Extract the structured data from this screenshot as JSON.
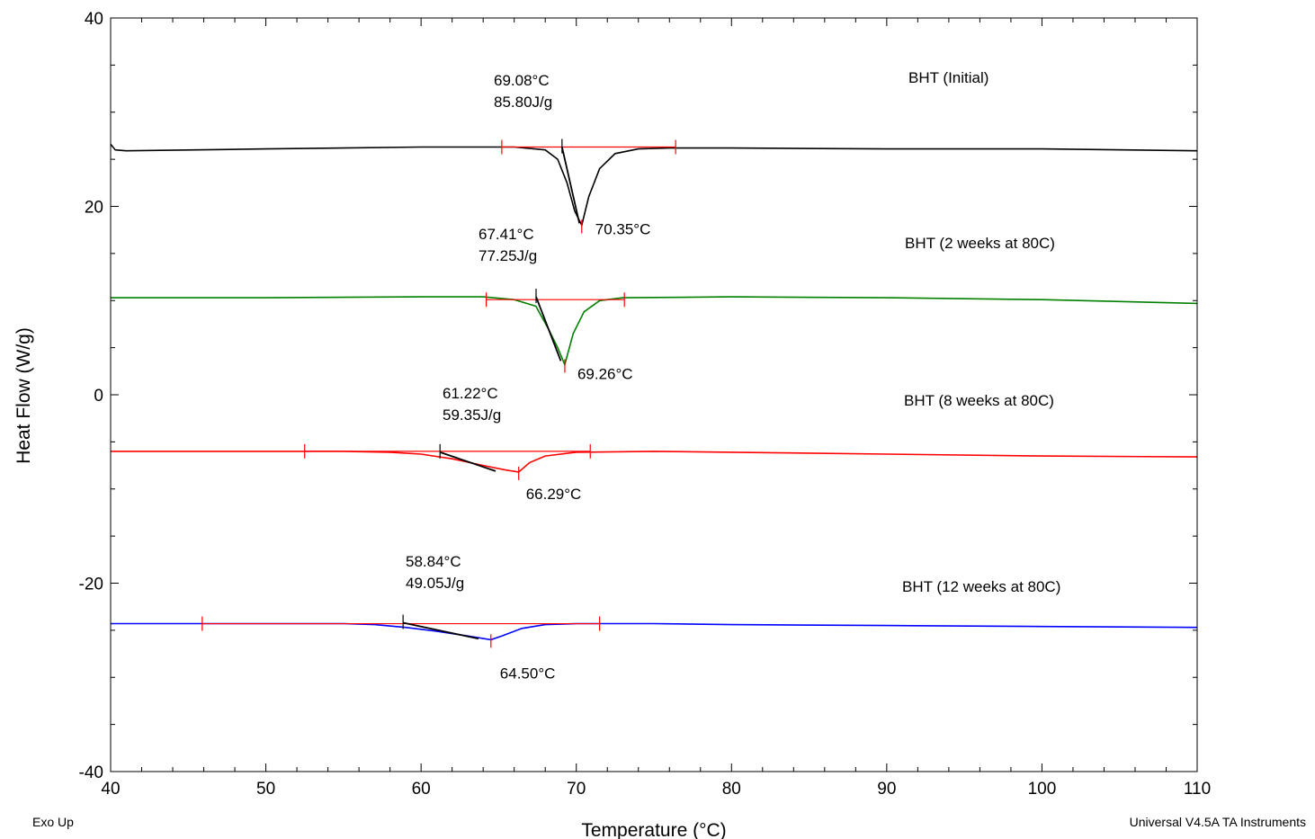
{
  "footer": {
    "left_note": "Exo Up",
    "right_note": "Universal V4.5A TA Instruments"
  },
  "chart_data": {
    "type": "line",
    "title": "",
    "xlabel": "Temperature (°C)",
    "ylabel": "Heat Flow (W/g)",
    "xlim": [
      40,
      110
    ],
    "ylim": [
      -40,
      40
    ],
    "xticks": [
      40,
      50,
      60,
      70,
      80,
      90,
      100,
      110
    ],
    "yticks": [
      -40,
      -20,
      0,
      20,
      40
    ],
    "grid": false,
    "series": [
      {
        "name": "BHT (Initial)",
        "color": "#000000",
        "points": [
          [
            40,
            26.6
          ],
          [
            40.3,
            26.0
          ],
          [
            41,
            25.9
          ],
          [
            50,
            26.1
          ],
          [
            60,
            26.3
          ],
          [
            66,
            26.3
          ],
          [
            68,
            26.0
          ],
          [
            68.8,
            25.0
          ],
          [
            69.4,
            22.5
          ],
          [
            69.9,
            19.5
          ],
          [
            70.35,
            18.0
          ],
          [
            70.8,
            21.0
          ],
          [
            71.5,
            24.0
          ],
          [
            72.5,
            25.6
          ],
          [
            74,
            26.1
          ],
          [
            76,
            26.2
          ],
          [
            80,
            26.2
          ],
          [
            90,
            26.1
          ],
          [
            100,
            26.1
          ],
          [
            110,
            25.9
          ]
        ],
        "onset_c": "69.08°C",
        "enthalpy": "85.80J/g",
        "peak_c": "70.35°C",
        "baseline": [
          65.2,
          76.4
        ],
        "onset_line": [
          [
            69.08,
            26.3
          ],
          [
            70.2,
            18.2
          ]
        ]
      },
      {
        "name": "BHT (2 weeks at 80C)",
        "color": "#008000",
        "points": [
          [
            40,
            10.3
          ],
          [
            50,
            10.3
          ],
          [
            60,
            10.4
          ],
          [
            64,
            10.4
          ],
          [
            66,
            10.1
          ],
          [
            67.4,
            9.4
          ],
          [
            68.2,
            7.0
          ],
          [
            68.8,
            5.0
          ],
          [
            69.26,
            3.2
          ],
          [
            69.8,
            6.5
          ],
          [
            70.5,
            8.8
          ],
          [
            71.5,
            10.0
          ],
          [
            73,
            10.3
          ],
          [
            80,
            10.4
          ],
          [
            90,
            10.3
          ],
          [
            100,
            10.1
          ],
          [
            110,
            9.7
          ]
        ],
        "onset_c": "67.41°C",
        "enthalpy": "77.25J/g",
        "peak_c": "69.26°C",
        "baseline": [
          64.2,
          73.1
        ],
        "onset_line": [
          [
            67.41,
            10.4
          ],
          [
            69.0,
            3.6
          ]
        ]
      },
      {
        "name": "BHT (8 weeks at 80C)",
        "color": "#ff0000",
        "points": [
          [
            40,
            -6.0
          ],
          [
            50,
            -6.0
          ],
          [
            55,
            -6.0
          ],
          [
            58,
            -6.1
          ],
          [
            60,
            -6.3
          ],
          [
            62,
            -6.8
          ],
          [
            64,
            -7.5
          ],
          [
            65.5,
            -8.0
          ],
          [
            66.29,
            -8.2
          ],
          [
            67,
            -7.2
          ],
          [
            68,
            -6.5
          ],
          [
            70,
            -6.1
          ],
          [
            75,
            -6.0
          ],
          [
            80,
            -6.1
          ],
          [
            90,
            -6.3
          ],
          [
            100,
            -6.5
          ],
          [
            110,
            -6.6
          ]
        ],
        "onset_c": "61.22°C",
        "enthalpy": "59.35J/g",
        "peak_c": "66.29°C",
        "baseline": [
          52.5,
          70.9
        ],
        "onset_line": [
          [
            61.22,
            -6.1
          ],
          [
            64.8,
            -8.1
          ]
        ]
      },
      {
        "name": "BHT (12 weeks at 80C)",
        "color": "#0000ff",
        "points": [
          [
            40,
            -24.3
          ],
          [
            50,
            -24.3
          ],
          [
            55,
            -24.3
          ],
          [
            57,
            -24.4
          ],
          [
            59,
            -24.7
          ],
          [
            61,
            -25.1
          ],
          [
            63,
            -25.6
          ],
          [
            64.5,
            -26.0
          ],
          [
            65.2,
            -25.6
          ],
          [
            66.5,
            -24.8
          ],
          [
            68,
            -24.4
          ],
          [
            70,
            -24.3
          ],
          [
            75,
            -24.3
          ],
          [
            80,
            -24.4
          ],
          [
            90,
            -24.5
          ],
          [
            100,
            -24.6
          ],
          [
            110,
            -24.7
          ]
        ],
        "onset_c": "58.84°C",
        "enthalpy": "49.05J/g",
        "peak_c": "64.50°C",
        "baseline": [
          45.9,
          71.5
        ],
        "onset_line": [
          [
            58.84,
            -24.2
          ],
          [
            63.7,
            -25.9
          ]
        ]
      }
    ]
  }
}
